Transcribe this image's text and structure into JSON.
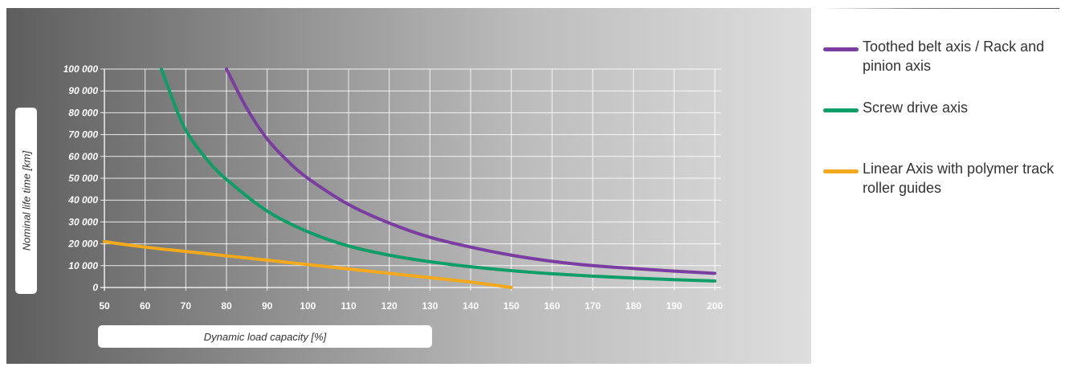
{
  "chart_data": {
    "type": "line",
    "xlabel": "Dynamic load capacity [%]",
    "ylabel": "Nominal life time [km]",
    "xlim": [
      50,
      200
    ],
    "ylim": [
      0,
      100000
    ],
    "x_ticks": [
      "50",
      "60",
      "70",
      "80",
      "90",
      "100",
      "110",
      "120",
      "130",
      "140",
      "150",
      "160",
      "170",
      "180",
      "190",
      "200"
    ],
    "y_ticks": [
      "0",
      "10 000",
      "20 000",
      "30 000",
      "40 000",
      "50 000",
      "60 000",
      "70 000",
      "80 000",
      "90 000",
      "100 000"
    ],
    "grid": true,
    "legend_position": "right",
    "series": [
      {
        "name": "Toothed belt axis / Rack and pinion axis",
        "color": "#7a3ea1",
        "x": [
          80,
          85,
          90,
          95,
          100,
          110,
          120,
          130,
          140,
          150,
          160,
          170,
          180,
          190,
          200
        ],
        "y": [
          100000,
          82000,
          68000,
          58000,
          50000,
          38000,
          29500,
          23000,
          18500,
          14800,
          12000,
          10000,
          8700,
          7500,
          6500
        ]
      },
      {
        "name": "Screw drive axis",
        "color": "#0f9d6a",
        "x": [
          64,
          67,
          70,
          75,
          80,
          90,
          100,
          110,
          120,
          130,
          140,
          150,
          160,
          170,
          180,
          190,
          200
        ],
        "y": [
          100000,
          85000,
          72000,
          59000,
          49500,
          35000,
          25500,
          19000,
          14800,
          11800,
          9500,
          7700,
          6300,
          5200,
          4300,
          3600,
          3000
        ]
      },
      {
        "name": "Linear Axis with polymer track roller guides",
        "color": "#f2aa1c",
        "x": [
          50,
          60,
          70,
          80,
          90,
          100,
          110,
          120,
          130,
          140,
          150
        ],
        "y": [
          21000,
          18500,
          16500,
          14500,
          12500,
          10500,
          8500,
          6500,
          4500,
          2500,
          0
        ]
      }
    ]
  }
}
